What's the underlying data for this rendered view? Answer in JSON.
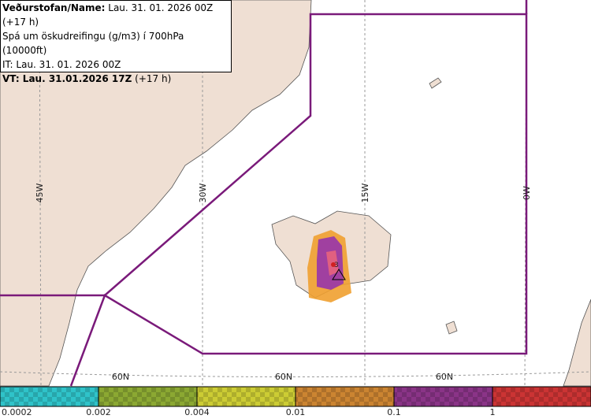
{
  "header": {
    "lines": [
      {
        "label": "Veðurstofan/Name:",
        "text": "Lau. 31. 01. 2026 00Z (+17 h)"
      },
      {
        "text": "Spá um öskudreifingu (g/m3) í 700hPa (10000ft)"
      },
      {
        "text": "IT: Lau. 31. 01. 2026 00Z"
      },
      {
        "label": "VT: Lau. 31.01.2026 17Z",
        "text": "(+17 h)"
      }
    ]
  },
  "map": {
    "meridians": [
      "45W",
      "30W",
      "15W",
      "0W"
    ],
    "parallels": [
      "60N",
      "60N",
      "60N"
    ],
    "marker": "3"
  },
  "legend": {
    "items": [
      {
        "label": "0.0002",
        "color": "#2fc3c9"
      },
      {
        "label": "0.002",
        "color": "#8ba832"
      },
      {
        "label": "0.004",
        "color": "#cccc34"
      },
      {
        "label": "0.01",
        "color": "#cb8431"
      },
      {
        "label": "0.1",
        "color": "#8a3487"
      },
      {
        "label": "1",
        "color": "#cb3434"
      }
    ]
  }
}
